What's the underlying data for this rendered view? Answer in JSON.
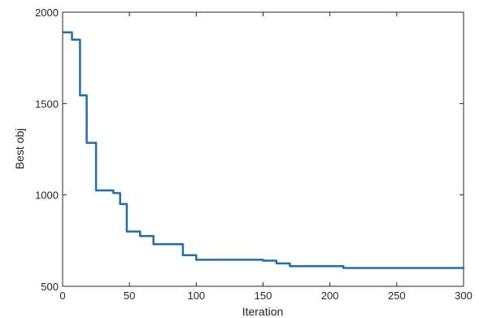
{
  "chart_data": {
    "type": "line",
    "title": "",
    "xlabel": "Iteration",
    "ylabel": "Best obj",
    "xlim": [
      0,
      300
    ],
    "ylim": [
      500,
      2000
    ],
    "xticks": [
      0,
      50,
      100,
      150,
      200,
      250,
      300
    ],
    "xtick_labels": [
      "0",
      "50",
      "100",
      "150",
      "200",
      "250",
      "300"
    ],
    "yticks": [
      500,
      1000,
      1500,
      2000
    ],
    "ytick_labels": [
      "500",
      "1000",
      "1500",
      "2000"
    ],
    "grid": false,
    "box": true,
    "series": [
      {
        "color": "#1f6eb0",
        "step": true,
        "x": [
          0,
          7,
          13,
          18,
          25,
          38,
          43,
          48,
          58,
          68,
          90,
          100,
          150,
          160,
          170,
          210,
          300
        ],
        "y": [
          1890,
          1850,
          1545,
          1285,
          1025,
          1010,
          950,
          800,
          775,
          730,
          670,
          645,
          640,
          625,
          610,
          600,
          595
        ]
      }
    ]
  }
}
